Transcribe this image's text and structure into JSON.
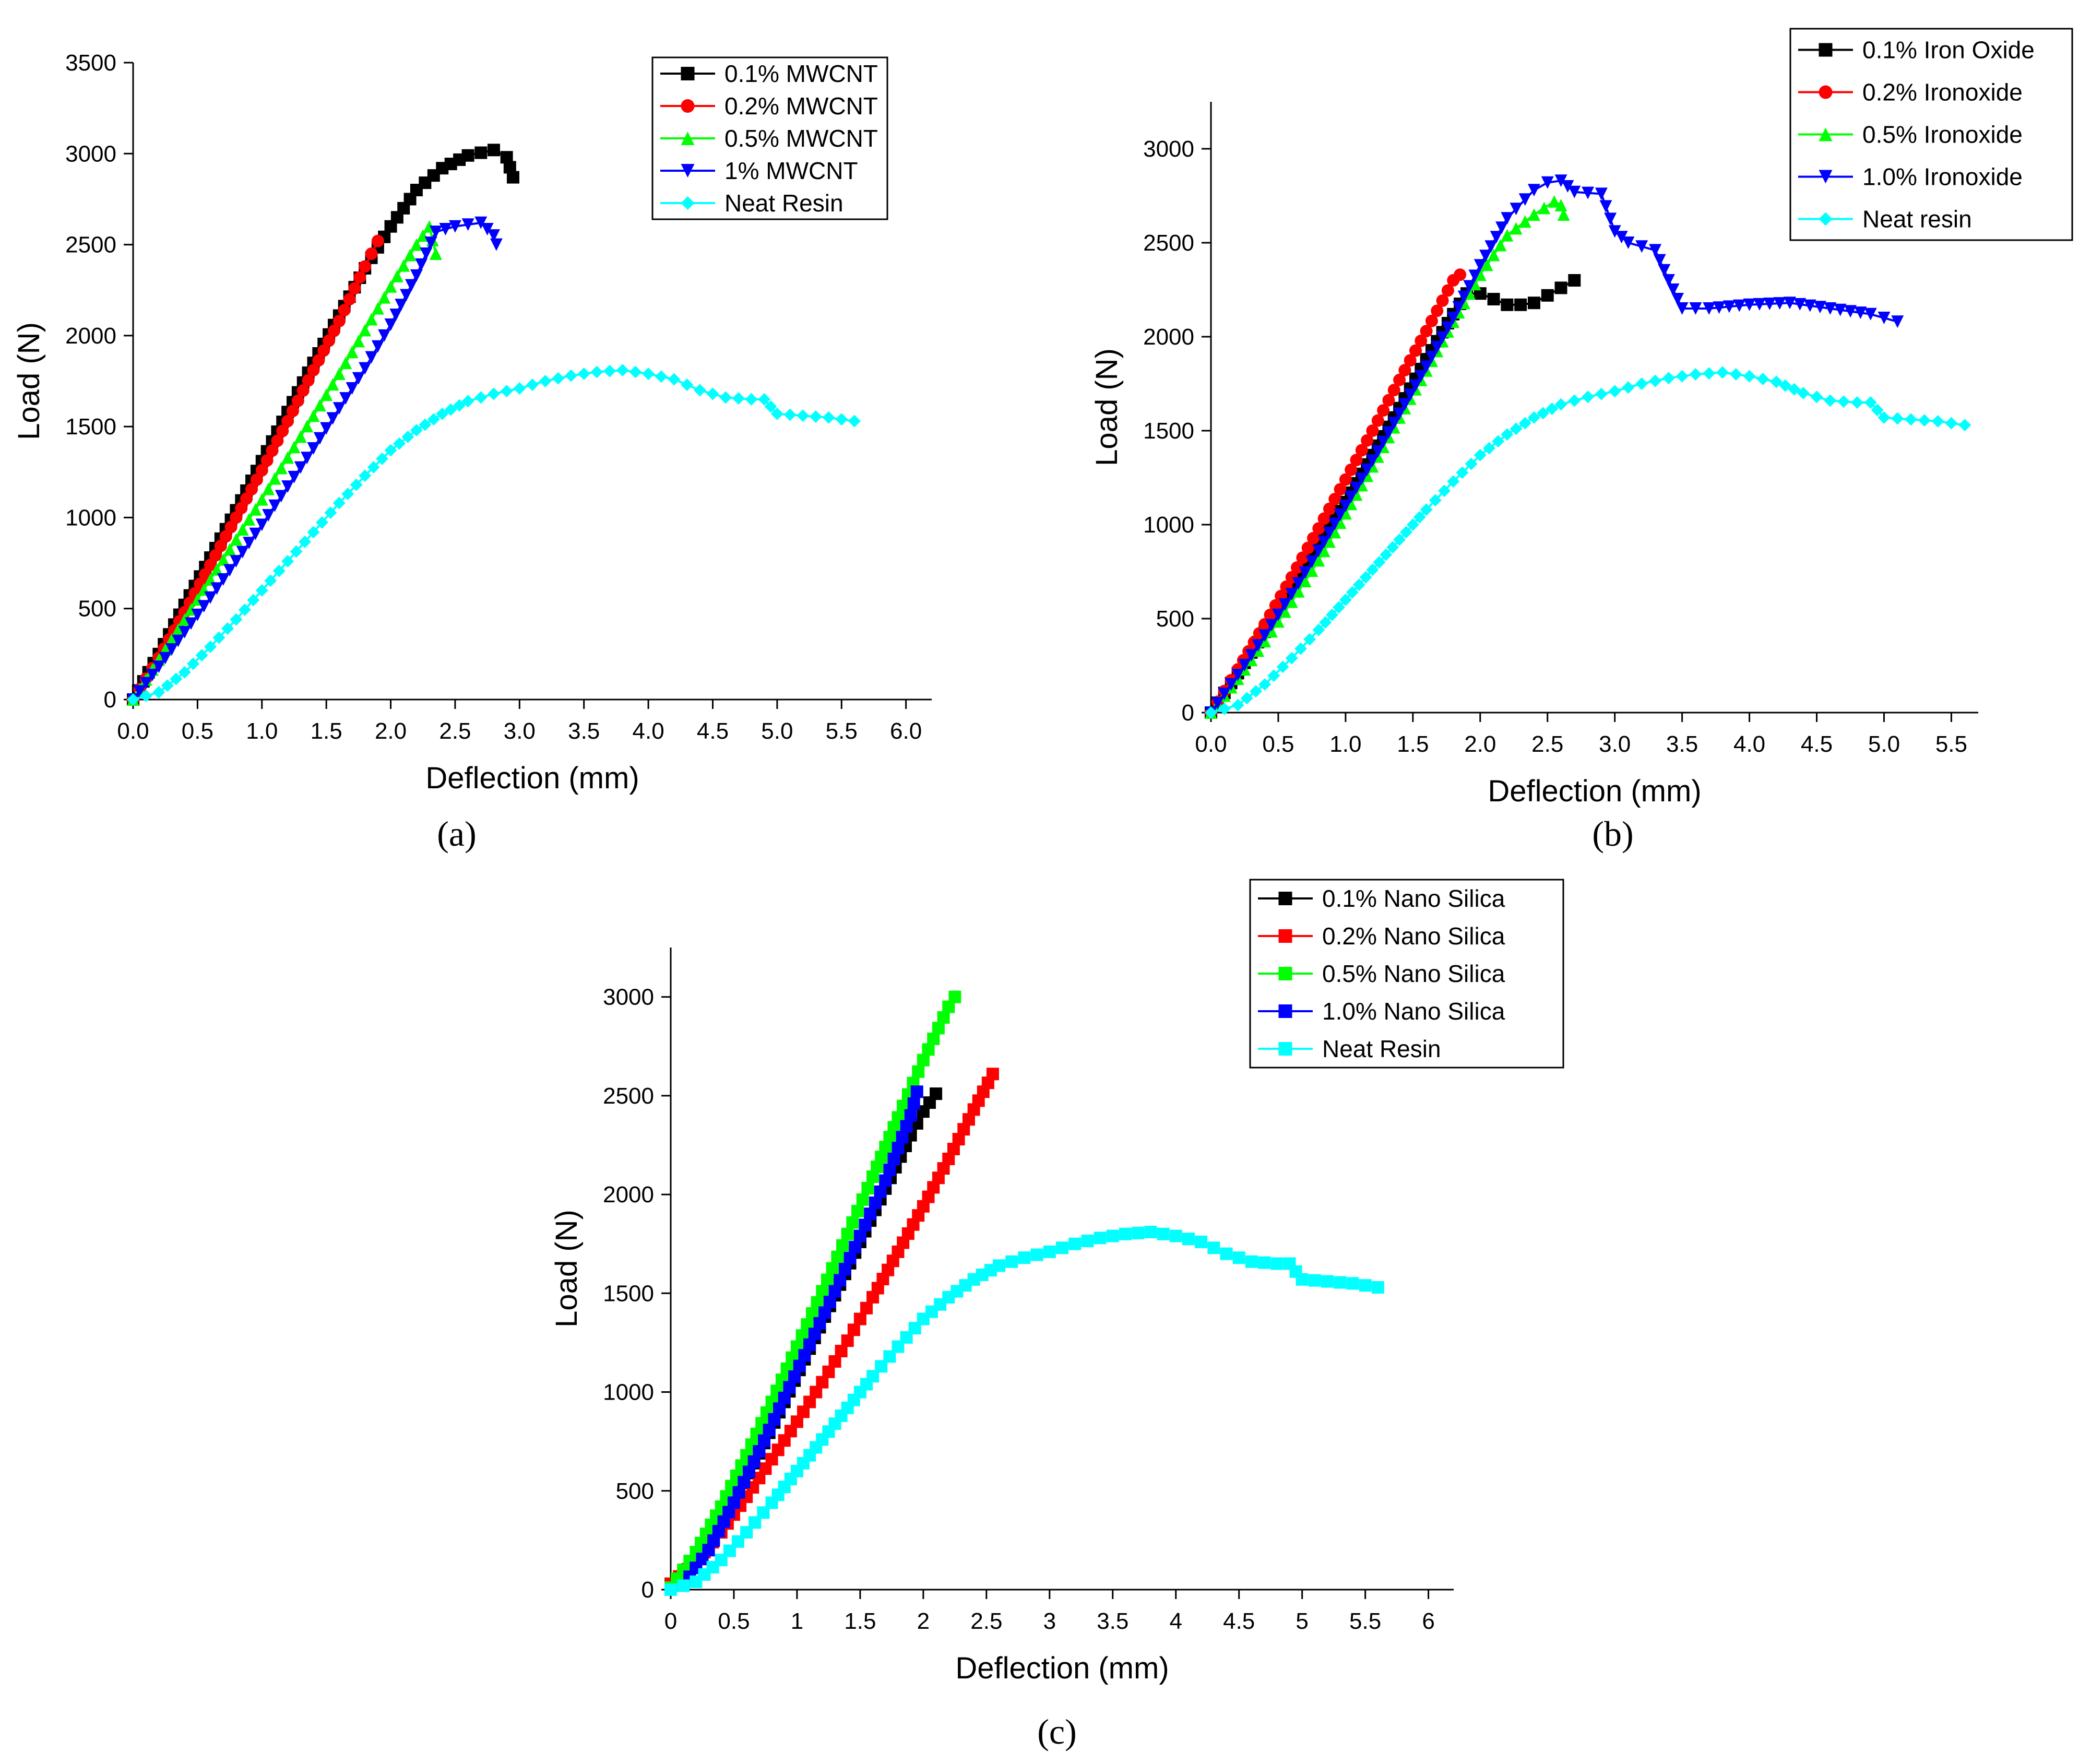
{
  "chart_data": [
    {
      "id": "a",
      "type": "line",
      "panel_label": "(a)",
      "xlabel": "Deflection (mm)",
      "ylabel": "Load (N)",
      "xlim": [
        0,
        6.2
      ],
      "ylim": [
        0,
        3500
      ],
      "xticks": [
        "0.0",
        "0.5",
        "1.0",
        "1.5",
        "2.0",
        "2.5",
        "3.0",
        "3.5",
        "4.0",
        "4.5",
        "5.0",
        "5.5",
        "6.0"
      ],
      "yticks": [
        "0",
        "500",
        "1000",
        "1500",
        "2000",
        "2500",
        "3000",
        "3500"
      ],
      "legend_position": "top-right",
      "series": [
        {
          "name": "0.1% MWCNT",
          "color": "#000000",
          "marker": "square",
          "x": [
            0,
            0.2,
            0.4,
            0.6,
            0.8,
            1.0,
            1.2,
            1.4,
            1.6,
            1.8,
            2.0,
            2.2,
            2.4,
            2.6,
            2.8,
            2.9,
            2.95
          ],
          "y": [
            0,
            250,
            520,
            780,
            1040,
            1310,
            1580,
            1850,
            2110,
            2370,
            2600,
            2800,
            2920,
            2990,
            3020,
            2980,
            2870
          ]
        },
        {
          "name": "0.2% MWCNT",
          "color": "#ff0000",
          "marker": "circle",
          "x": [
            0,
            0.2,
            0.4,
            0.6,
            0.8,
            1.0,
            1.2,
            1.4,
            1.6,
            1.8,
            1.9
          ],
          "y": [
            0,
            230,
            480,
            740,
            1000,
            1260,
            1530,
            1810,
            2080,
            2380,
            2520
          ]
        },
        {
          "name": "0.5% MWCNT",
          "color": "#00ff00",
          "marker": "triangle-up",
          "x": [
            0,
            0.2,
            0.4,
            0.6,
            0.8,
            1.0,
            1.2,
            1.4,
            1.6,
            1.8,
            2.0,
            2.2,
            2.3,
            2.35
          ],
          "y": [
            0,
            220,
            440,
            660,
            880,
            1100,
            1330,
            1560,
            1790,
            2030,
            2270,
            2500,
            2600,
            2450
          ]
        },
        {
          "name": "1% MWCNT",
          "color": "#0000ff",
          "marker": "triangle-down",
          "x": [
            0,
            0.2,
            0.4,
            0.6,
            0.8,
            1.0,
            1.2,
            1.4,
            1.6,
            1.8,
            2.0,
            2.2,
            2.35,
            2.5,
            2.7,
            2.8,
            2.82
          ],
          "y": [
            0,
            180,
            370,
            560,
            760,
            960,
            1170,
            1380,
            1600,
            1820,
            2060,
            2330,
            2570,
            2600,
            2620,
            2550,
            2500
          ]
        },
        {
          "name": "Neat Resin",
          "color": "#00ffff",
          "marker": "diamond",
          "x": [
            0,
            0.2,
            0.4,
            0.6,
            0.8,
            1.0,
            1.2,
            1.4,
            1.6,
            1.8,
            2.0,
            2.2,
            2.4,
            2.6,
            2.8,
            3.0,
            3.2,
            3.4,
            3.6,
            3.8,
            4.0,
            4.2,
            4.4,
            4.6,
            4.8,
            4.9,
            5.0,
            5.2,
            5.4,
            5.6
          ],
          "y": [
            0,
            40,
            150,
            290,
            440,
            600,
            760,
            920,
            1080,
            1230,
            1370,
            1480,
            1570,
            1640,
            1680,
            1710,
            1750,
            1780,
            1800,
            1810,
            1790,
            1760,
            1700,
            1660,
            1650,
            1650,
            1570,
            1560,
            1550,
            1530
          ]
        }
      ]
    },
    {
      "id": "b",
      "type": "line",
      "panel_label": "(b)",
      "xlabel": "Deflection (mm)",
      "ylabel": "Load (N)",
      "xlim": [
        0,
        5.7
      ],
      "ylim": [
        0,
        3250
      ],
      "xticks": [
        "0.0",
        "0.5",
        "1.0",
        "1.5",
        "2.0",
        "2.5",
        "3.0",
        "3.5",
        "4.0",
        "4.5",
        "5.0",
        "5.5"
      ],
      "yticks": [
        "0",
        "500",
        "1000",
        "1500",
        "2000",
        "2500",
        "3000"
      ],
      "legend_position": "top-right",
      "series": [
        {
          "name": "0.1% Iron Oxide",
          "color": "#000000",
          "marker": "square",
          "x": [
            0,
            0.2,
            0.4,
            0.6,
            0.8,
            1.0,
            1.2,
            1.4,
            1.6,
            1.8,
            1.9,
            2.0,
            2.1,
            2.2,
            2.3,
            2.4,
            2.5,
            2.6,
            2.7
          ],
          "y": [
            0,
            210,
            430,
            650,
            880,
            1120,
            1370,
            1620,
            1880,
            2120,
            2230,
            2230,
            2200,
            2170,
            2170,
            2180,
            2220,
            2260,
            2300
          ]
        },
        {
          "name": "0.2% Ironoxide",
          "color": "#ff0000",
          "marker": "circle",
          "x": [
            0,
            0.2,
            0.4,
            0.6,
            0.8,
            1.0,
            1.2,
            1.4,
            1.6,
            1.8,
            1.85
          ],
          "y": [
            0,
            230,
            470,
            720,
            980,
            1240,
            1500,
            1770,
            2030,
            2300,
            2330
          ]
        },
        {
          "name": "0.5% Ironoxide",
          "color": "#00ff00",
          "marker": "triangle-up",
          "x": [
            0,
            0.2,
            0.4,
            0.6,
            0.8,
            1.0,
            1.2,
            1.4,
            1.6,
            1.8,
            2.0,
            2.2,
            2.4,
            2.55,
            2.6,
            2.62
          ],
          "y": [
            0,
            180,
            380,
            590,
            810,
            1060,
            1310,
            1570,
            1820,
            2080,
            2330,
            2540,
            2650,
            2720,
            2700,
            2650
          ]
        },
        {
          "name": "1.0% Ironoxide",
          "color": "#0000ff",
          "marker": "triangle-down",
          "x": [
            0,
            0.2,
            0.4,
            0.6,
            0.8,
            1.0,
            1.2,
            1.4,
            1.6,
            1.8,
            2.0,
            2.2,
            2.4,
            2.5,
            2.6,
            2.7,
            2.9,
            3.0,
            3.1,
            3.3,
            3.4,
            3.5,
            3.7,
            4.0,
            4.3,
            4.6,
            4.9,
            5.1
          ],
          "y": [
            0,
            200,
            410,
            630,
            860,
            1100,
            1340,
            1590,
            1840,
            2100,
            2380,
            2630,
            2780,
            2820,
            2830,
            2770,
            2760,
            2560,
            2500,
            2460,
            2300,
            2150,
            2150,
            2170,
            2180,
            2150,
            2120,
            2080
          ]
        },
        {
          "name": "Neat resin",
          "color": "#00ffff",
          "marker": "diamond",
          "x": [
            0,
            0.2,
            0.4,
            0.6,
            0.8,
            1.0,
            1.2,
            1.4,
            1.6,
            1.8,
            2.0,
            2.2,
            2.4,
            2.6,
            2.8,
            3.0,
            3.2,
            3.4,
            3.6,
            3.8,
            4.0,
            4.2,
            4.4,
            4.6,
            4.8,
            4.9,
            5.0,
            5.2,
            5.4,
            5.6
          ],
          "y": [
            0,
            40,
            150,
            290,
            440,
            600,
            760,
            920,
            1080,
            1230,
            1370,
            1480,
            1570,
            1640,
            1680,
            1710,
            1750,
            1780,
            1800,
            1810,
            1790,
            1760,
            1700,
            1660,
            1650,
            1650,
            1570,
            1560,
            1550,
            1530
          ]
        }
      ]
    },
    {
      "id": "c",
      "type": "line",
      "panel_label": "(c)",
      "xlabel": "Deflection (mm)",
      "ylabel": "Load (N)",
      "xlim": [
        0,
        6.2
      ],
      "ylim": [
        0,
        3250
      ],
      "xticks": [
        "0",
        "0.5",
        "1",
        "1.5",
        "2",
        "2.5",
        "3",
        "3.5",
        "4",
        "4.5",
        "5",
        "5.5",
        "6"
      ],
      "yticks": [
        "0",
        "500",
        "1000",
        "1500",
        "2000",
        "2500",
        "3000"
      ],
      "legend_position": "top-right",
      "series": [
        {
          "name": "0.1% Nano Silica",
          "color": "#000000",
          "marker": "square",
          "x": [
            0.1,
            0.3,
            0.5,
            0.7,
            0.9,
            1.1,
            1.3,
            1.5,
            1.7,
            1.9,
            2.0,
            2.1
          ],
          "y": [
            30,
            210,
            440,
            690,
            950,
            1220,
            1490,
            1760,
            2030,
            2300,
            2420,
            2510
          ]
        },
        {
          "name": "0.2% Nano Silica",
          "color": "#ff0000",
          "marker": "square",
          "x": [
            0,
            0.2,
            0.4,
            0.6,
            0.8,
            1.0,
            1.2,
            1.4,
            1.6,
            1.8,
            2.0,
            2.2,
            2.4,
            2.55
          ],
          "y": [
            30,
            140,
            290,
            470,
            660,
            850,
            1050,
            1260,
            1480,
            1710,
            1940,
            2180,
            2430,
            2610
          ]
        },
        {
          "name": "0.5% Nano Silica",
          "color": "#00ff00",
          "marker": "square",
          "x": [
            0,
            0.2,
            0.4,
            0.6,
            0.8,
            1.0,
            1.2,
            1.4,
            1.6,
            1.8,
            2.0,
            2.2,
            2.25
          ],
          "y": [
            10,
            190,
            420,
            680,
            950,
            1230,
            1510,
            1800,
            2090,
            2390,
            2680,
            2950,
            3000
          ]
        },
        {
          "name": "1.0% Nano Silica",
          "color": "#0000ff",
          "marker": "square",
          "x": [
            0.1,
            0.3,
            0.5,
            0.7,
            0.9,
            1.1,
            1.3,
            1.5,
            1.7,
            1.9,
            1.95
          ],
          "y": [
            20,
            200,
            440,
            700,
            970,
            1240,
            1510,
            1790,
            2070,
            2400,
            2520
          ]
        },
        {
          "name": "Neat Resin",
          "color": "#00ffff",
          "marker": "square",
          "x": [
            0,
            0.2,
            0.4,
            0.6,
            0.8,
            1.0,
            1.2,
            1.4,
            1.6,
            1.8,
            2.0,
            2.2,
            2.4,
            2.6,
            2.8,
            3.0,
            3.2,
            3.4,
            3.6,
            3.8,
            4.0,
            4.2,
            4.4,
            4.6,
            4.8,
            4.9,
            5.0,
            5.2,
            5.4,
            5.6
          ],
          "y": [
            0,
            40,
            150,
            290,
            440,
            600,
            760,
            920,
            1080,
            1230,
            1370,
            1480,
            1570,
            1640,
            1680,
            1710,
            1750,
            1780,
            1800,
            1810,
            1790,
            1760,
            1700,
            1660,
            1650,
            1650,
            1570,
            1560,
            1550,
            1530
          ]
        }
      ]
    }
  ]
}
